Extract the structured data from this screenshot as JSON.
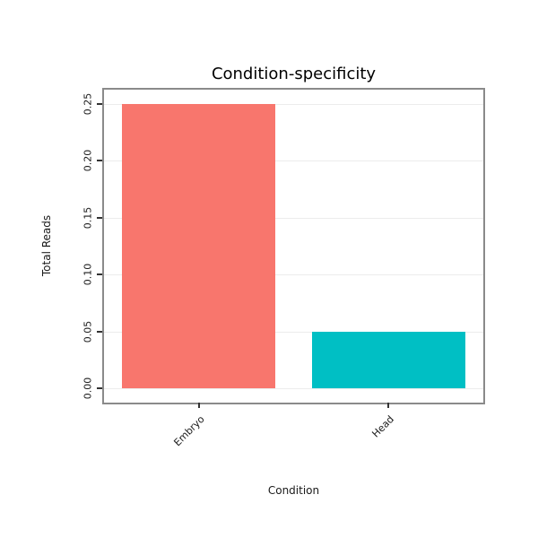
{
  "chart_data": {
    "type": "bar",
    "title": "Condition-specificity",
    "xlabel": "Condition",
    "ylabel": "Total Reads",
    "categories": [
      "Embryo",
      "Head"
    ],
    "values": [
      0.25,
      0.05
    ],
    "bar_colors": [
      "#F8766D",
      "#00BFC4"
    ],
    "yticks": [
      0.0,
      0.05,
      0.1,
      0.15,
      0.2,
      0.25
    ],
    "ytick_label_format": "2-decimal",
    "ylim": [
      -0.0125,
      0.2625
    ],
    "grid": "horizontal major gridlines, light gray on white panel",
    "legend": "none",
    "panel_border_color": "#8a8a8a",
    "xtick_label_rotation_deg": 45,
    "ytick_label_rotation_deg": 90
  }
}
